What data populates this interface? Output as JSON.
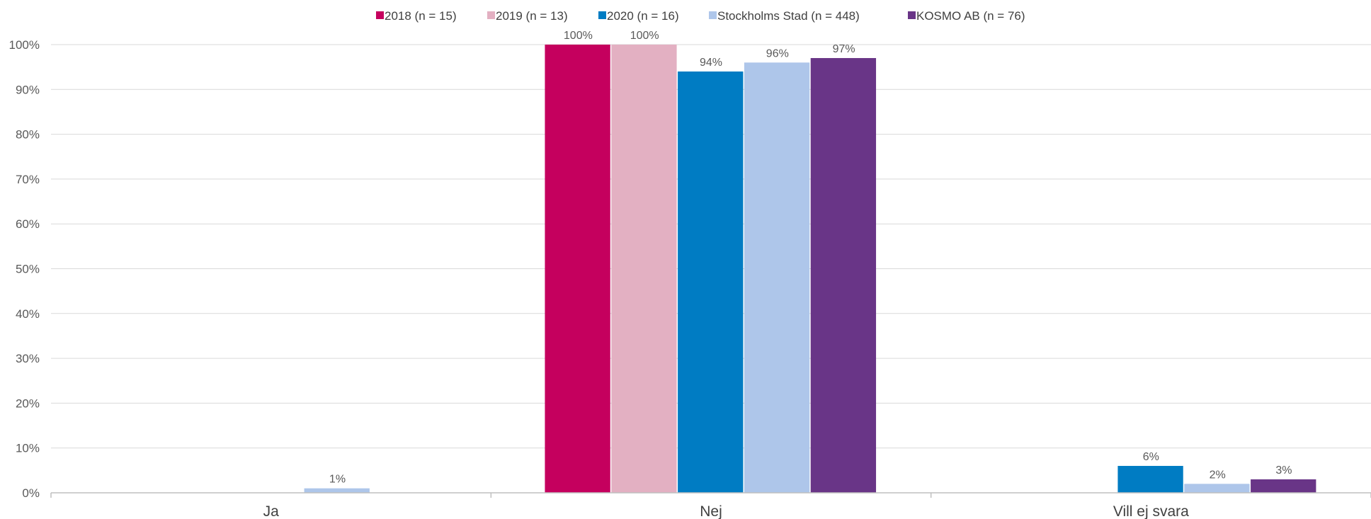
{
  "chart_data": {
    "type": "bar",
    "categories": [
      "Ja",
      "Nej",
      "Vill ej svara"
    ],
    "series": [
      {
        "name": "2018 (n = 15)",
        "color": "#C5005E",
        "values": [
          null,
          100,
          null
        ],
        "labels": [
          "",
          "100%",
          ""
        ]
      },
      {
        "name": "2019 (n = 13)",
        "color": "#E3B0C2",
        "values": [
          null,
          100,
          null
        ],
        "labels": [
          "",
          "100%",
          ""
        ]
      },
      {
        "name": "2020 (n = 16)",
        "color": "#007CC3",
        "values": [
          null,
          94,
          6
        ],
        "labels": [
          "",
          "94%",
          "6%"
        ]
      },
      {
        "name": "Stockholms Stad (n = 448)",
        "color": "#AEC6EA",
        "values": [
          1,
          96,
          2
        ],
        "labels": [
          "1%",
          "96%",
          "2%"
        ]
      },
      {
        "name": "KOSMO AB (n = 76)",
        "color": "#693587",
        "values": [
          null,
          97,
          3
        ],
        "labels": [
          "",
          "97%",
          "3%"
        ]
      }
    ],
    "ylim": [
      0,
      100
    ],
    "yticks": [
      "0%",
      "10%",
      "20%",
      "30%",
      "40%",
      "50%",
      "60%",
      "70%",
      "80%",
      "90%",
      "100%"
    ],
    "grid": true,
    "legend_position": "top"
  }
}
